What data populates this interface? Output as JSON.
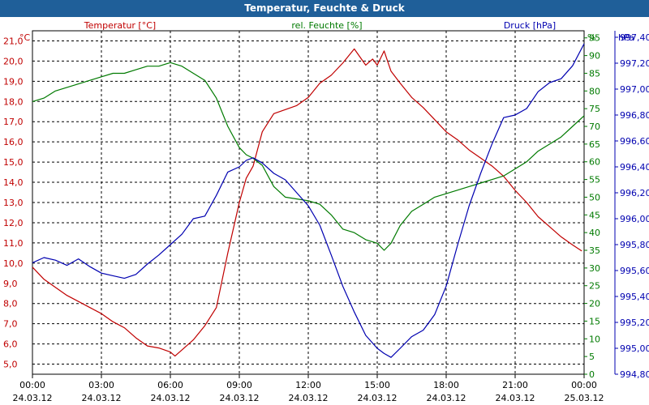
{
  "window": {
    "title": "Temperatur, Feuchte & Druck"
  },
  "colors": {
    "temperature": "#c00000",
    "humidity": "#007a00",
    "pressure": "#0000b0",
    "grid": "#000000",
    "title_bg": "#1f5f99"
  },
  "chart_data": {
    "type": "line",
    "title": "Temperatur, Feuchte & Druck",
    "grid": true,
    "x_ticks": [
      {
        "time": "00:00",
        "date": "24.03.12"
      },
      {
        "time": "03:00",
        "date": "24.03.12"
      },
      {
        "time": "06:00",
        "date": "24.03.12"
      },
      {
        "time": "09:00",
        "date": "24.03.12"
      },
      {
        "time": "12:00",
        "date": "24.03.12"
      },
      {
        "time": "15:00",
        "date": "24.03.12"
      },
      {
        "time": "18:00",
        "date": "24.03.12"
      },
      {
        "time": "21:00",
        "date": "24.03.12"
      },
      {
        "time": "00:00",
        "date": "25.03.12"
      }
    ],
    "xlim": [
      0,
      24
    ],
    "axes": {
      "temperature": {
        "label": "Temperatur [°C]",
        "unit": "°C",
        "min": 4.5,
        "max": 21.5,
        "ticks": [
          "5,0",
          "6,0",
          "7,0",
          "8,0",
          "9,0",
          "10,0",
          "11,0",
          "12,0",
          "13,0",
          "14,0",
          "15,0",
          "16,0",
          "17,0",
          "18,0",
          "19,0",
          "20,0",
          "21,0"
        ]
      },
      "humidity": {
        "label": "rel. Feuchte [%]",
        "unit": "%",
        "min": 0,
        "max": 97,
        "ticks": [
          "0",
          "5",
          "10",
          "15",
          "20",
          "25",
          "30",
          "35",
          "40",
          "45",
          "50",
          "55",
          "60",
          "65",
          "70",
          "75",
          "80",
          "85",
          "90",
          "95"
        ]
      },
      "pressure": {
        "label": "Druck [hPa]",
        "unit": "hPa",
        "min": 994.8,
        "max": 997.45,
        "ticks": [
          "994,80",
          "995,00",
          "995,20",
          "995,40",
          "995,60",
          "995,80",
          "996,00",
          "996,20",
          "996,40",
          "996,60",
          "996,80",
          "997,00",
          "997,20",
          "997,40"
        ]
      }
    },
    "series": [
      {
        "name": "Temperatur [°C]",
        "axis": "temperature",
        "color": "#c00000",
        "x": [
          0,
          0.5,
          1,
          1.5,
          2,
          2.5,
          3,
          3.5,
          4,
          4.5,
          5,
          5.5,
          6,
          6.2,
          6.5,
          7,
          7.5,
          8,
          8.5,
          9,
          9.3,
          9.6,
          10,
          10.5,
          11,
          11.5,
          12,
          12.5,
          13,
          13.5,
          14,
          14.5,
          14.8,
          15,
          15.3,
          15.6,
          16,
          16.5,
          17,
          17.5,
          18,
          18.5,
          19,
          19.5,
          20,
          20.5,
          21,
          21.5,
          22,
          22.5,
          23,
          23.5,
          23.9
        ],
        "values": [
          9.8,
          9.2,
          8.8,
          8.4,
          8.1,
          7.8,
          7.5,
          7.1,
          6.8,
          6.3,
          5.9,
          5.8,
          5.6,
          5.4,
          5.7,
          6.2,
          6.9,
          7.8,
          10.5,
          13.0,
          14.2,
          14.8,
          16.5,
          17.4,
          17.6,
          17.8,
          18.2,
          18.9,
          19.3,
          19.9,
          20.6,
          19.8,
          20.1,
          19.8,
          20.5,
          19.5,
          18.9,
          18.2,
          17.7,
          17.1,
          16.5,
          16.1,
          15.6,
          15.2,
          14.8,
          14.3,
          13.6,
          13.0,
          12.3,
          11.8,
          11.3,
          10.9,
          10.6
        ]
      },
      {
        "name": "rel. Feuchte [%]",
        "axis": "humidity",
        "color": "#007a00",
        "x": [
          0,
          0.5,
          1,
          1.5,
          2,
          2.5,
          3,
          3.5,
          4,
          4.5,
          5,
          5.5,
          6,
          6.5,
          7,
          7.5,
          8,
          8.5,
          9,
          9.3,
          9.6,
          10,
          10.5,
          11,
          11.5,
          12,
          12.5,
          13,
          13.5,
          14,
          14.5,
          15,
          15.3,
          15.6,
          16,
          16.5,
          17,
          17.5,
          18,
          18.5,
          19,
          19.5,
          20,
          20.5,
          21,
          21.5,
          22,
          22.5,
          23,
          23.5,
          24
        ],
        "values": [
          77,
          78,
          80,
          81,
          82,
          83,
          84,
          85,
          85,
          86,
          87,
          87,
          88,
          87,
          85,
          83,
          78,
          70,
          64,
          62,
          61,
          59,
          53,
          50,
          49.5,
          49,
          48,
          45,
          41,
          40,
          38,
          37,
          35,
          37,
          42,
          46,
          48,
          50,
          51,
          52,
          53,
          54,
          55,
          56,
          58,
          60,
          63,
          65,
          67,
          70,
          73
        ]
      },
      {
        "name": "Druck [hPa]",
        "axis": "pressure",
        "color": "#0000b0",
        "x": [
          0,
          0.5,
          1,
          1.5,
          2,
          2.5,
          3,
          3.5,
          4,
          4.5,
          5,
          5.5,
          6,
          6.5,
          7,
          7.5,
          8,
          8.5,
          9,
          9.3,
          9.6,
          10,
          10.5,
          11,
          11.5,
          12,
          12.5,
          13,
          13.5,
          14,
          14.5,
          15,
          15.3,
          15.6,
          16,
          16.5,
          17,
          17.5,
          18,
          18.5,
          19,
          19.5,
          20,
          20.5,
          21,
          21.5,
          22,
          22.5,
          23,
          23.5,
          24
        ],
        "values": [
          995.66,
          995.7,
          995.68,
          995.64,
          995.69,
          995.63,
          995.58,
          995.56,
          995.54,
          995.57,
          995.65,
          995.72,
          995.8,
          995.88,
          996.0,
          996.02,
          996.18,
          996.36,
          996.4,
          996.45,
          996.47,
          996.43,
          996.35,
          996.3,
          996.2,
          996.1,
          995.95,
          995.72,
          995.48,
          995.28,
          995.1,
          995.0,
          994.96,
          994.93,
          995.0,
          995.09,
          995.14,
          995.26,
          995.48,
          995.8,
          996.1,
          996.35,
          996.58,
          996.78,
          996.8,
          996.85,
          996.98,
          997.05,
          997.08,
          997.18,
          997.35
        ]
      }
    ]
  }
}
